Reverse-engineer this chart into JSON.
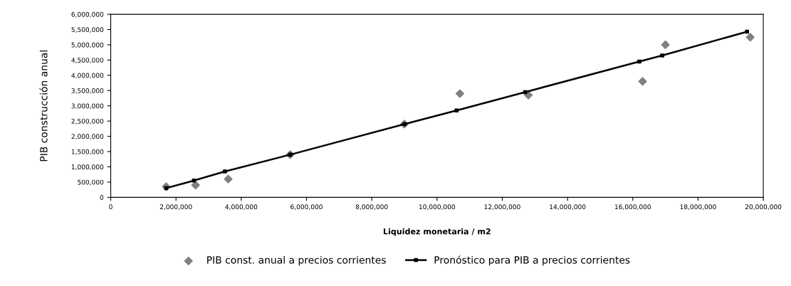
{
  "chart_data": {
    "type": "scatter",
    "xlabel": "Liquidez monetaria / m2",
    "ylabel": "PIB construcción anual",
    "series": [
      {
        "name": "PIB const. anual a precios corrientes",
        "marker": "diamond",
        "color": "#808080",
        "x": [
          1700000,
          2600000,
          3600000,
          5500000,
          9000000,
          10700000,
          12800000,
          16300000,
          17000000,
          19600000
        ],
        "values": [
          350000,
          400000,
          600000,
          1400000,
          2400000,
          3400000,
          3350000,
          3800000,
          5000000,
          5250000
        ]
      },
      {
        "name": "Pronóstico para PIB a precios corrientes",
        "type": "line",
        "marker": "square",
        "line_style": "solid",
        "color": "#000000",
        "x": [
          1700000,
          2550000,
          3500000,
          5500000,
          9000000,
          10600000,
          12700000,
          16200000,
          16900000,
          19500000
        ],
        "values": [
          300000,
          550000,
          850000,
          1400000,
          2400000,
          2850000,
          3450000,
          4450000,
          4650000,
          5430000
        ]
      }
    ],
    "xlim": [
      0,
      20000000
    ],
    "xticks": [
      0,
      {
        "value": 2000000,
        "label": "2,000,000"
      },
      {
        "value": 4000000,
        "label": "4,000,000"
      },
      {
        "value": 6000000,
        "label": "6,000,000"
      },
      {
        "value": 8000000,
        "label": "8,000,000"
      },
      {
        "value": 10000000,
        "label": "10,000,000"
      },
      {
        "value": 12000000,
        "label": "12,000,000"
      },
      {
        "value": 14000000,
        "label": "14,000,000"
      },
      {
        "value": 16000000,
        "label": "16,000,000"
      },
      {
        "value": 18000000,
        "label": "18,000,000"
      },
      {
        "value": 20000000,
        "label": "20,000,000"
      }
    ],
    "ylim": [
      0,
      6000000
    ],
    "yticks": [
      0,
      {
        "value": 500000,
        "label": "500,000"
      },
      {
        "value": 1000000,
        "label": "1,000,000"
      },
      {
        "value": 1500000,
        "label": "1,500,000"
      },
      {
        "value": 2000000,
        "label": "2,000,000"
      },
      {
        "value": 2500000,
        "label": "2,500,000"
      },
      {
        "value": 3000000,
        "label": "3,000,000"
      },
      {
        "value": 3500000,
        "label": "3,500,000"
      },
      {
        "value": 4000000,
        "label": "4,000,000"
      },
      {
        "value": 4500000,
        "label": "4,500,000"
      },
      {
        "value": 5000000,
        "label": "5,000,000"
      },
      {
        "value": 5500000,
        "label": "5,500,000"
      },
      {
        "value": 6000000,
        "label": "6,000,000"
      }
    ],
    "grid": false,
    "legend": "bottom"
  }
}
